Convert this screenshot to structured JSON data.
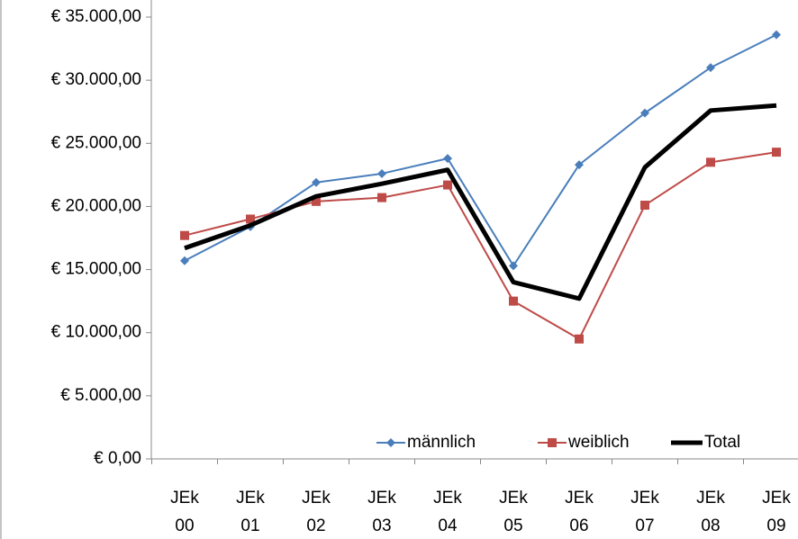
{
  "chart_data": {
    "type": "line",
    "categories": [
      "JEk 00",
      "JEk 01",
      "JEk 02",
      "JEk 03",
      "JEk 04",
      "JEk 05",
      "JEk 06",
      "JEk 07",
      "JEk 08",
      "JEk 09"
    ],
    "series": [
      {
        "name": "männlich",
        "color": "#4a7ebb",
        "marker": "diamond",
        "values": [
          15700,
          18400,
          21900,
          22600,
          23800,
          15300,
          23300,
          27400,
          31000,
          33600
        ]
      },
      {
        "name": "weiblich",
        "color": "#be4b48",
        "marker": "square",
        "values": [
          17700,
          19000,
          20400,
          20700,
          21700,
          12500,
          9500,
          20100,
          23500,
          24300
        ]
      },
      {
        "name": "Total",
        "color": "#000000",
        "values": [
          16700,
          18500,
          20800,
          21800,
          22900,
          14000,
          12700,
          23100,
          27600,
          28000
        ]
      }
    ],
    "ylim": [
      0,
      35000
    ],
    "yticks": [
      {
        "value": 0,
        "label": "€ 0,00"
      },
      {
        "value": 5000,
        "label": "€ 5.000,00"
      },
      {
        "value": 10000,
        "label": "€ 10.000,00"
      },
      {
        "value": 15000,
        "label": "€ 15.000,00"
      },
      {
        "value": 20000,
        "label": "€ 20.000,00"
      },
      {
        "value": 25000,
        "label": "€ 25.000,00"
      },
      {
        "value": 30000,
        "label": "€ 30.000,00"
      },
      {
        "value": 35000,
        "label": "€ 35.000,00"
      }
    ],
    "grid": false,
    "legend": "lower right"
  }
}
